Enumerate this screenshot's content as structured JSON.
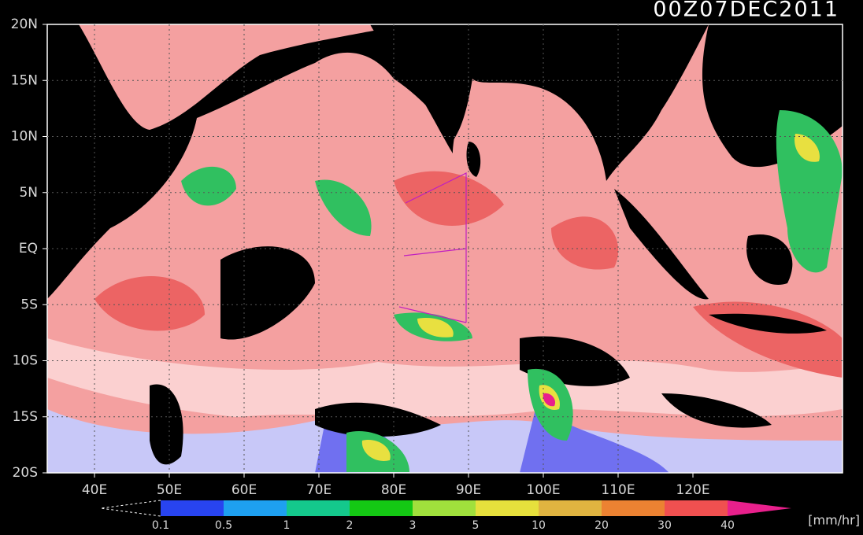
{
  "title": "00Z07DEC2011",
  "lat_labels": [
    "20N",
    "15N",
    "10N",
    "5N",
    "EQ",
    "5S",
    "10S",
    "15S",
    "20S"
  ],
  "lon_labels": [
    "40E",
    "50E",
    "60E",
    "70E",
    "80E",
    "90E",
    "100E",
    "110E",
    "120E"
  ],
  "colorbar": {
    "labels": [
      "0.1",
      "0.5",
      "1",
      "2",
      "3",
      "5",
      "10",
      "20",
      "30",
      "40"
    ],
    "colors": [
      "#2844f0",
      "#1ea0f0",
      "#14c88c",
      "#14c814",
      "#a0e03c",
      "#e6e03c",
      "#e0b440",
      "#ec8232",
      "#f05050"
    ],
    "over_color": "#e8208c",
    "unit": "[mm/hr]"
  }
}
